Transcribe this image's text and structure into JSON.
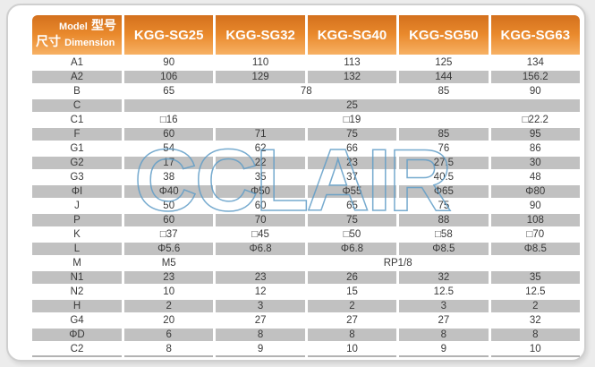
{
  "watermark": "CCLAIR",
  "colors": {
    "header_gradient_top": "#d3701d",
    "header_gradient_mid": "#e9892c",
    "header_gradient_bottom": "#f7b164",
    "row_stripe_gray": "#c1c1c1",
    "watermark_blue": "#5f9cc7",
    "card_border": "#cfcfcf",
    "text": "#3a3a3a"
  },
  "table": {
    "corner": {
      "model_en": "Model",
      "model_zh": "型号",
      "dim_zh": "尺寸",
      "dim_en": "Dimension"
    },
    "columns": [
      "KGG-SG25",
      "KGG-SG32",
      "KGG-SG40",
      "KGG-SG50",
      "KGG-SG63"
    ],
    "rows": [
      {
        "label": "A1",
        "cells": [
          {
            "value": "90"
          },
          {
            "value": "110"
          },
          {
            "value": "113"
          },
          {
            "value": "125"
          },
          {
            "value": "134"
          }
        ]
      },
      {
        "label": "A2",
        "cells": [
          {
            "value": "106"
          },
          {
            "value": "129"
          },
          {
            "value": "132"
          },
          {
            "value": "144"
          },
          {
            "value": "156.2"
          }
        ]
      },
      {
        "label": "B",
        "cells": [
          {
            "value": "65"
          },
          {
            "value": "78",
            "span": 2
          },
          {
            "value": "85"
          },
          {
            "value": "90"
          }
        ]
      },
      {
        "label": "C",
        "cells": [
          {
            "value": "25",
            "span": 5
          }
        ]
      },
      {
        "label": "C1",
        "cells": [
          {
            "value": "□16"
          },
          {
            "value": ""
          },
          {
            "value": "□19"
          },
          {
            "value": ""
          },
          {
            "value": "□22.2"
          }
        ]
      },
      {
        "label": "F",
        "cells": [
          {
            "value": "60"
          },
          {
            "value": "71"
          },
          {
            "value": "75"
          },
          {
            "value": "85"
          },
          {
            "value": "95"
          }
        ]
      },
      {
        "label": "G1",
        "cells": [
          {
            "value": "54"
          },
          {
            "value": "62"
          },
          {
            "value": "66"
          },
          {
            "value": "76"
          },
          {
            "value": "86"
          }
        ]
      },
      {
        "label": "G2",
        "cells": [
          {
            "value": "17"
          },
          {
            "value": "22"
          },
          {
            "value": "23"
          },
          {
            "value": "27.5"
          },
          {
            "value": "30"
          }
        ]
      },
      {
        "label": "G3",
        "cells": [
          {
            "value": "38"
          },
          {
            "value": "35"
          },
          {
            "value": "37"
          },
          {
            "value": "40.5"
          },
          {
            "value": "48"
          }
        ]
      },
      {
        "label": "ΦI",
        "cells": [
          {
            "value": "Φ40"
          },
          {
            "value": "Φ50"
          },
          {
            "value": "Φ55"
          },
          {
            "value": "Φ65"
          },
          {
            "value": "Φ80"
          }
        ]
      },
      {
        "label": "J",
        "cells": [
          {
            "value": "50"
          },
          {
            "value": "60"
          },
          {
            "value": "65"
          },
          {
            "value": "75"
          },
          {
            "value": "90"
          }
        ]
      },
      {
        "label": "P",
        "cells": [
          {
            "value": "60"
          },
          {
            "value": "70"
          },
          {
            "value": "75"
          },
          {
            "value": "88"
          },
          {
            "value": "108"
          }
        ]
      },
      {
        "label": "K",
        "cells": [
          {
            "value": "□37"
          },
          {
            "value": "□45"
          },
          {
            "value": "□50"
          },
          {
            "value": "□58"
          },
          {
            "value": "□70"
          }
        ]
      },
      {
        "label": "L",
        "cells": [
          {
            "value": "Φ5.6"
          },
          {
            "value": "Φ6.8"
          },
          {
            "value": "Φ6.8"
          },
          {
            "value": "Φ8.5"
          },
          {
            "value": "Φ8.5"
          }
        ]
      },
      {
        "label": "M",
        "cells": [
          {
            "value": "M5"
          },
          {
            "value": "RP1/8",
            "span": 4
          }
        ]
      },
      {
        "label": "N1",
        "cells": [
          {
            "value": "23"
          },
          {
            "value": "23"
          },
          {
            "value": "26"
          },
          {
            "value": "32"
          },
          {
            "value": "35"
          }
        ]
      },
      {
        "label": "N2",
        "cells": [
          {
            "value": "10"
          },
          {
            "value": "12"
          },
          {
            "value": "15"
          },
          {
            "value": "12.5"
          },
          {
            "value": "12.5"
          }
        ]
      },
      {
        "label": "H",
        "cells": [
          {
            "value": "2"
          },
          {
            "value": "3"
          },
          {
            "value": "2"
          },
          {
            "value": "3"
          },
          {
            "value": "2"
          }
        ]
      },
      {
        "label": "G4",
        "cells": [
          {
            "value": "20"
          },
          {
            "value": "27"
          },
          {
            "value": "27"
          },
          {
            "value": "27"
          },
          {
            "value": "32"
          }
        ]
      },
      {
        "label": "ΦD",
        "cells": [
          {
            "value": "6"
          },
          {
            "value": "8"
          },
          {
            "value": "8"
          },
          {
            "value": "8"
          },
          {
            "value": "8"
          }
        ]
      },
      {
        "label": "C2",
        "cells": [
          {
            "value": "8"
          },
          {
            "value": "9"
          },
          {
            "value": "10"
          },
          {
            "value": "9"
          },
          {
            "value": "10"
          }
        ]
      }
    ]
  }
}
